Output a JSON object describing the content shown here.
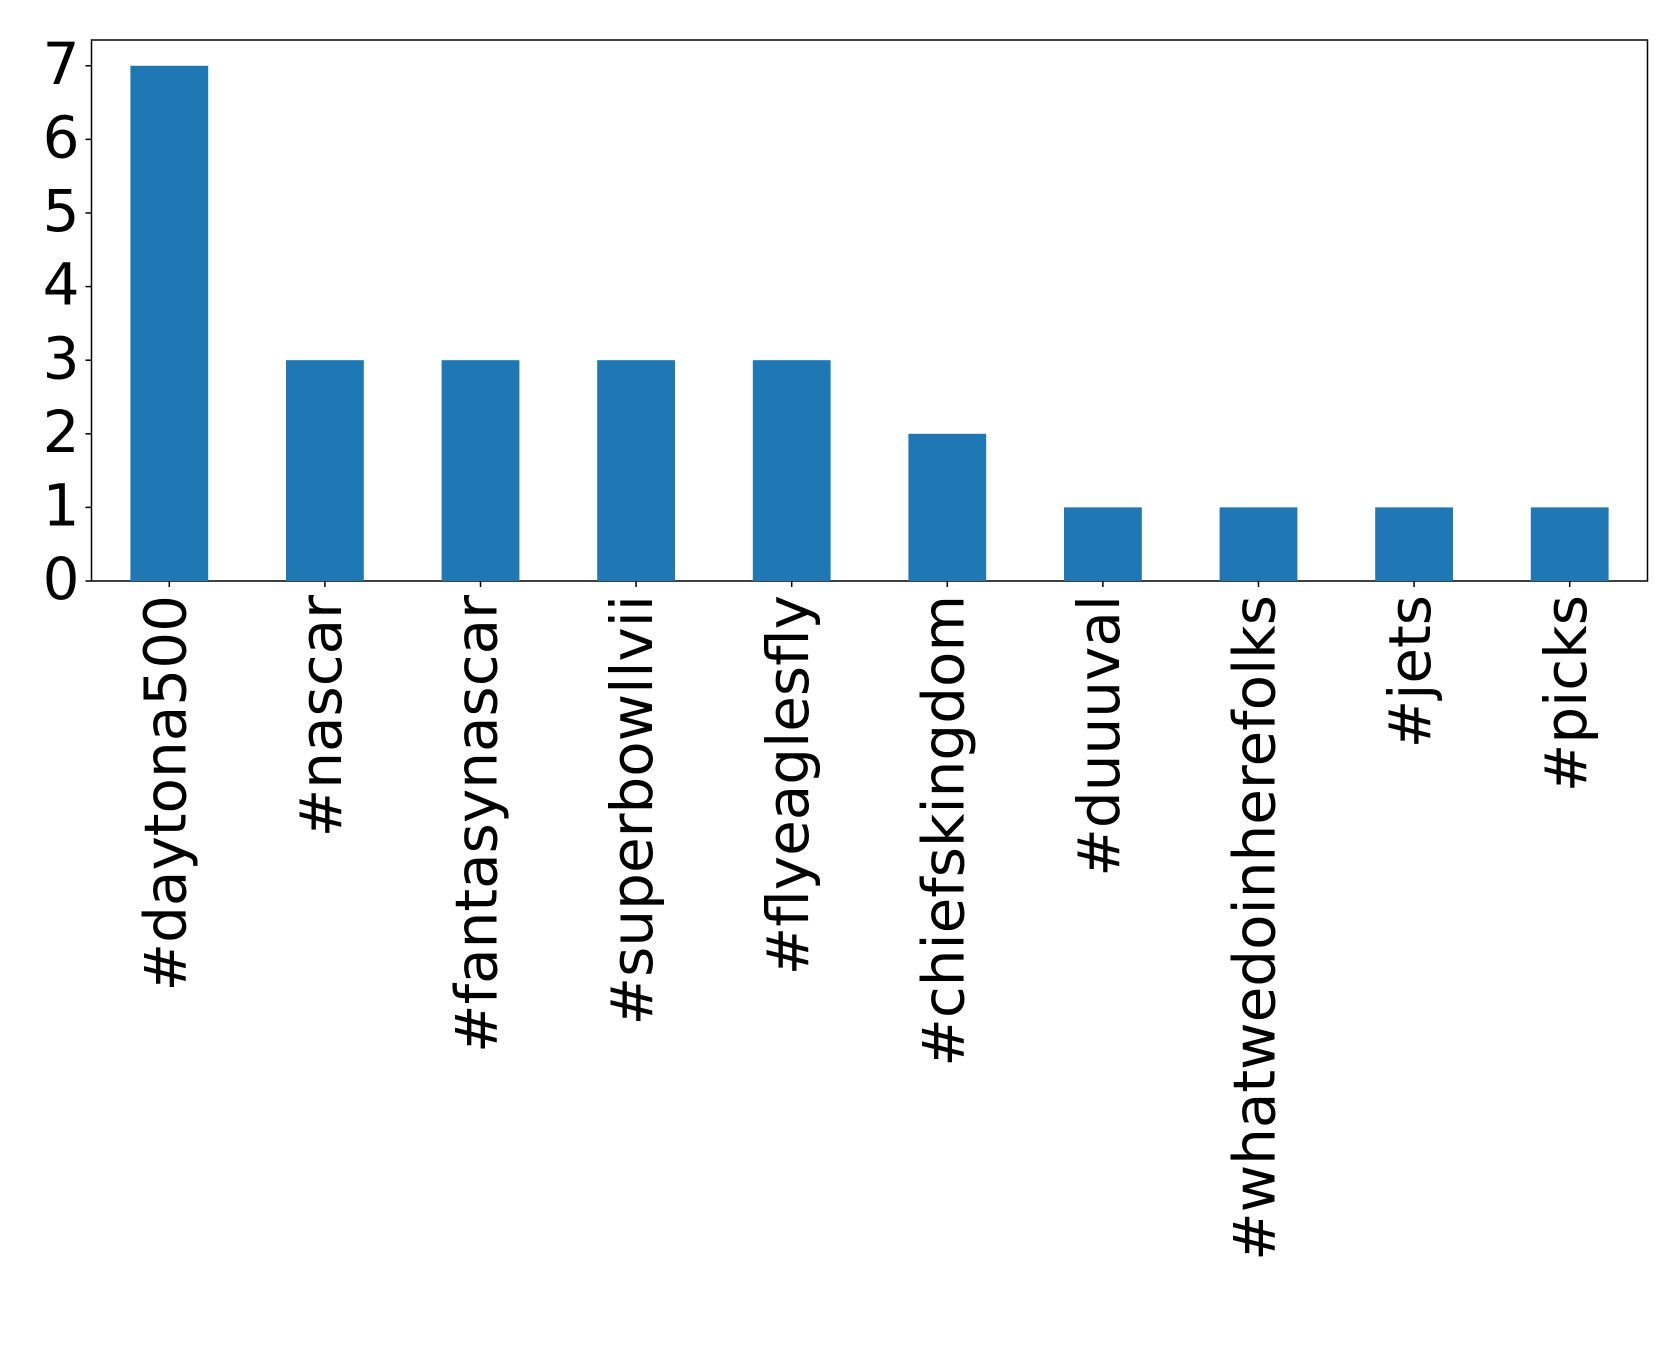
{
  "chart_data": {
    "type": "bar",
    "categories": [
      "#daytona500",
      "#nascar",
      "#fantasynascar",
      "#superbowllvii",
      "#flyeaglesfly",
      "#chiefskingdom",
      "#duuuval",
      "#whatwedoinherefolks",
      "#jets",
      "#picks"
    ],
    "values": [
      7,
      3,
      3,
      3,
      3,
      2,
      1,
      1,
      1,
      1
    ],
    "color": "#1f77b4",
    "ylim": [
      0,
      7.35
    ],
    "yticks": [
      0,
      1,
      2,
      3,
      4,
      5,
      6,
      7
    ],
    "grid": false
  }
}
